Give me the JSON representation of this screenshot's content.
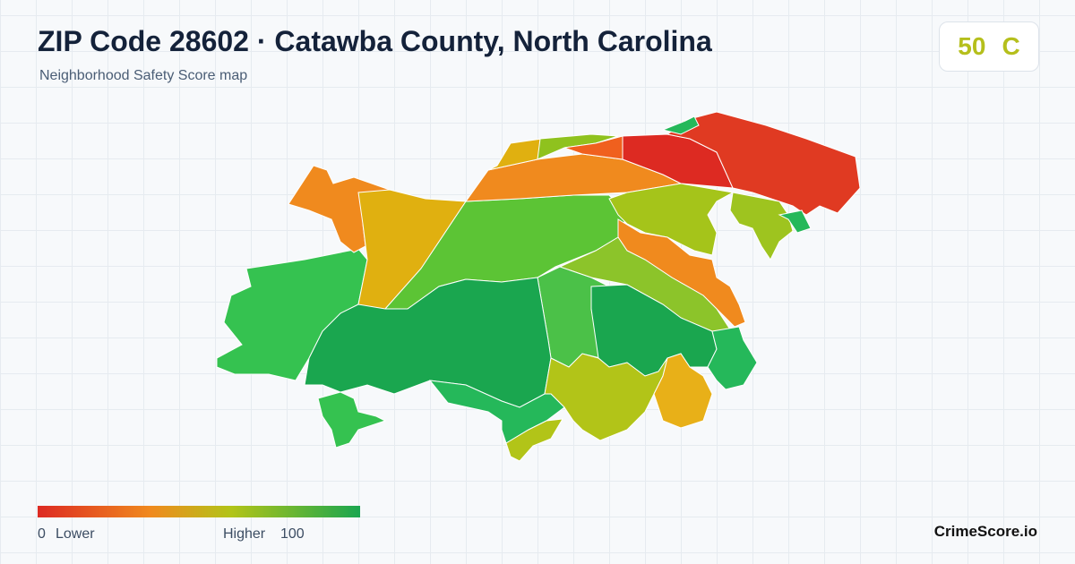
{
  "header": {
    "title": "ZIP Code 28602 · Catawba County, North Carolina",
    "subtitle": "Neighborhood Safety Score map"
  },
  "score": {
    "value": 50,
    "grade": "C"
  },
  "legend": {
    "min": 0,
    "min_label": "Lower",
    "max_label": "Higher",
    "max": 100
  },
  "brand": "CrimeScore.io"
}
